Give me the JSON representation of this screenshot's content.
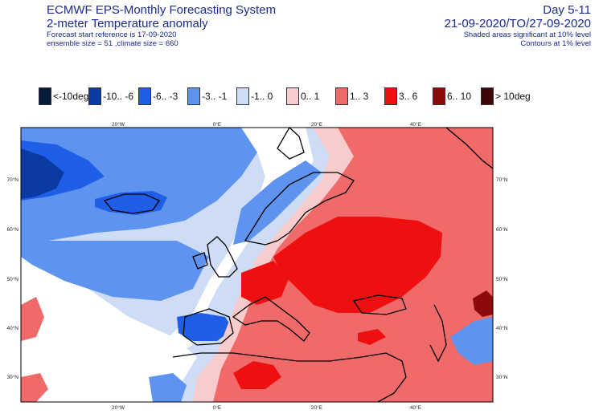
{
  "header": {
    "title": "ECMWF EPS-Monthly Forecasting System",
    "subtitle": "2-meter Temperature anomaly",
    "start_reference": "Forecast start reference is 17-09-2020",
    "ensemble": "ensemble size = 51  ,climate size = 660",
    "period_label": "Day 5-11",
    "date_range": "21-09-2020/TO/27-09-2020",
    "note_shaded": "Shaded areas significant at 10% level",
    "note_contours": "Contours at 1% level"
  },
  "legend": [
    {
      "label": "<-10deg",
      "color": "#061a3a"
    },
    {
      "label": "-10.. -6",
      "color": "#0b3aa3"
    },
    {
      "label": "-6.. -3",
      "color": "#1f5fe8"
    },
    {
      "label": "-3.. -1",
      "color": "#5e93f0"
    },
    {
      "label": "-1.. 0",
      "color": "#cfdcf6"
    },
    {
      "label": "0.. 1",
      "color": "#f8cccc"
    },
    {
      "label": "1.. 3",
      "color": "#f06a6a"
    },
    {
      "label": "3.. 6",
      "color": "#ee1010"
    },
    {
      "label": "6.. 10",
      "color": "#8e0a0a"
    },
    {
      "label": "> 10deg",
      "color": "#3a0606"
    }
  ],
  "map": {
    "lon_ticks": [
      "20°W",
      "0°E",
      "20°E",
      "40°E"
    ],
    "lat_ticks": [
      "70°N",
      "60°N",
      "50°N",
      "40°N",
      "30°N"
    ]
  }
}
